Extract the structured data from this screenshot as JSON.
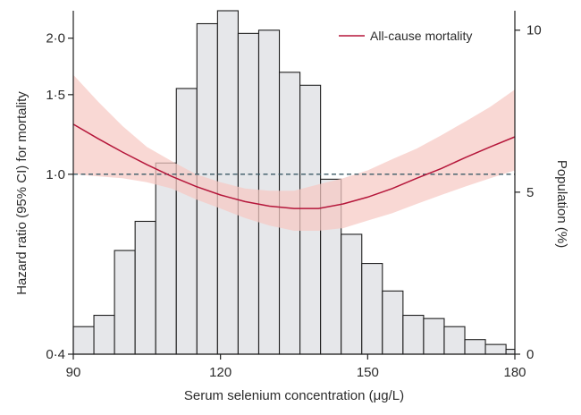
{
  "chart_data": {
    "type": "bar",
    "description_type": "histogram with overlaid spline line and confidence band",
    "xlabel": "Serum selenium concentration (μg/L)",
    "ylabel_left": "Hazard ratio (95% CI) for mortality",
    "ylabel_right": "Population (%)",
    "xlim": [
      90,
      180
    ],
    "x_ticks": [
      90,
      120,
      150,
      180
    ],
    "x_tick_labels": [
      "90",
      "120",
      "150",
      "180"
    ],
    "y_left_scale": "log",
    "y_left_lim": [
      0.4,
      2.3
    ],
    "y_left_ticks": [
      0.4,
      1.0,
      1.5,
      2.0
    ],
    "y_left_tick_labels": [
      "0·4",
      "1·0",
      "1·5",
      "2·0"
    ],
    "y_right_lim": [
      0,
      10.6
    ],
    "y_right_ticks": [
      0,
      5,
      10
    ],
    "y_right_tick_labels": [
      "0",
      "5",
      "10"
    ],
    "reference_line": 1.0,
    "histogram": {
      "bin_width": 4.2,
      "bin_starts": [
        90,
        94.2,
        98.4,
        102.6,
        106.8,
        111,
        115.2,
        119.4,
        123.6,
        127.8,
        132,
        136.2,
        140.4,
        144.6,
        148.8,
        153,
        157.2,
        161.4,
        165.6,
        169.8,
        174,
        178.2
      ],
      "values": [
        0.85,
        1.2,
        3.2,
        4.1,
        5.9,
        8.2,
        10.2,
        10.6,
        9.9,
        10.0,
        8.7,
        8.3,
        5.4,
        3.7,
        2.8,
        1.95,
        1.2,
        1.1,
        0.85,
        0.45,
        0.3,
        0.15
      ]
    },
    "series": [
      {
        "name": "All-cause mortality",
        "color": "#b5163a",
        "x": [
          90,
          95,
          100,
          105,
          110,
          115,
          120,
          125,
          130,
          135,
          140,
          145,
          150,
          155,
          160,
          165,
          170,
          175,
          180
        ],
        "values": [
          1.29,
          1.2,
          1.12,
          1.05,
          0.99,
          0.94,
          0.9,
          0.87,
          0.85,
          0.84,
          0.84,
          0.86,
          0.89,
          0.93,
          0.98,
          1.03,
          1.09,
          1.15,
          1.21
        ],
        "ci_lower": [
          1.0,
          0.99,
          0.98,
          0.96,
          0.93,
          0.88,
          0.84,
          0.8,
          0.77,
          0.75,
          0.75,
          0.76,
          0.79,
          0.82,
          0.86,
          0.9,
          0.94,
          0.98,
          1.02
        ],
        "ci_upper": [
          1.66,
          1.45,
          1.28,
          1.15,
          1.07,
          1.0,
          0.96,
          0.93,
          0.92,
          0.92,
          0.95,
          0.98,
          1.02,
          1.08,
          1.14,
          1.22,
          1.31,
          1.41,
          1.54
        ]
      }
    ],
    "legend": {
      "entries": [
        "All-cause mortality"
      ],
      "placement": "top-right"
    }
  },
  "colors": {
    "bar_fill": "#e6e7ea",
    "line": "#b5163a",
    "band": "#f6c9c4",
    "reference": "#3b5a66"
  }
}
